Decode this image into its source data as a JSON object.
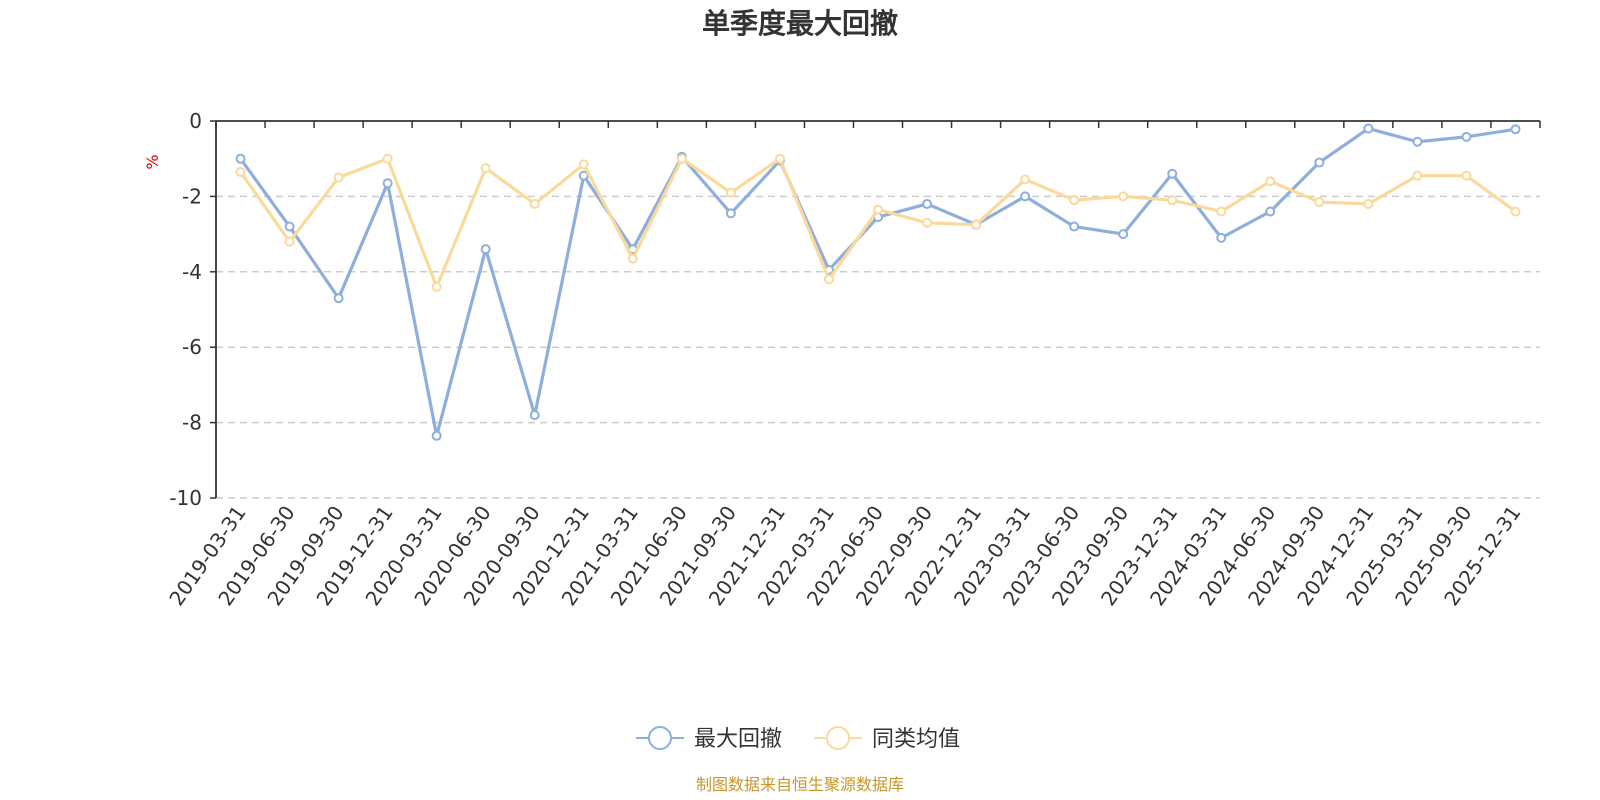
{
  "chart_data": {
    "type": "line",
    "title": "单季度最大回撤",
    "ylabel": "%",
    "ylim": [
      -10,
      0
    ],
    "yticks": [
      0,
      -2,
      -4,
      -6,
      -8,
      -10
    ],
    "grid": "dashed-horizontal",
    "legend_position": "bottom-center",
    "x": [
      "2019-03-31",
      "2019-06-30",
      "2019-09-30",
      "2019-12-31",
      "2020-03-31",
      "2020-06-30",
      "2020-09-30",
      "2020-12-31",
      "2021-03-31",
      "2021-06-30",
      "2021-09-30",
      "2021-12-31",
      "2022-03-31",
      "2022-06-30",
      "2022-09-30",
      "2022-12-31",
      "2023-03-31",
      "2023-06-30",
      "2023-09-30",
      "2023-12-31",
      "2024-03-31",
      "2024-06-30",
      "2024-09-30",
      "2024-12-31",
      "2025-03-31",
      "2025-09-30",
      "2025-12-31"
    ],
    "series": [
      {
        "name": "最大回撤",
        "color": "#8eaedb",
        "values": [
          -1.0,
          -2.8,
          -4.7,
          -1.65,
          -8.35,
          -3.4,
          -7.8,
          -1.45,
          -3.4,
          -0.95,
          -2.45,
          -1.05,
          -3.95,
          -2.55,
          -2.2,
          -2.75,
          -2.0,
          -2.8,
          -3.0,
          -1.4,
          -3.1,
          -2.4,
          -1.1,
          -0.2,
          -0.55,
          -0.42,
          -0.22
        ]
      },
      {
        "name": "同类均值",
        "color": "#fbd99b",
        "values": [
          -1.35,
          -3.2,
          -1.5,
          -1.0,
          -4.4,
          -1.25,
          -2.2,
          -1.15,
          -3.65,
          -1.0,
          -1.9,
          -1.0,
          -4.2,
          -2.35,
          -2.7,
          -2.75,
          -1.55,
          -2.1,
          -2.0,
          -2.1,
          -2.4,
          -1.6,
          -2.15,
          -2.2,
          -1.45,
          -1.45,
          -2.4
        ]
      }
    ]
  },
  "source_text": "制图数据来自恒生聚源数据库",
  "colors": {
    "axis": "#333333",
    "grid": "#cccccc",
    "ylabel": "#e60000",
    "source": "#c8962a"
  }
}
